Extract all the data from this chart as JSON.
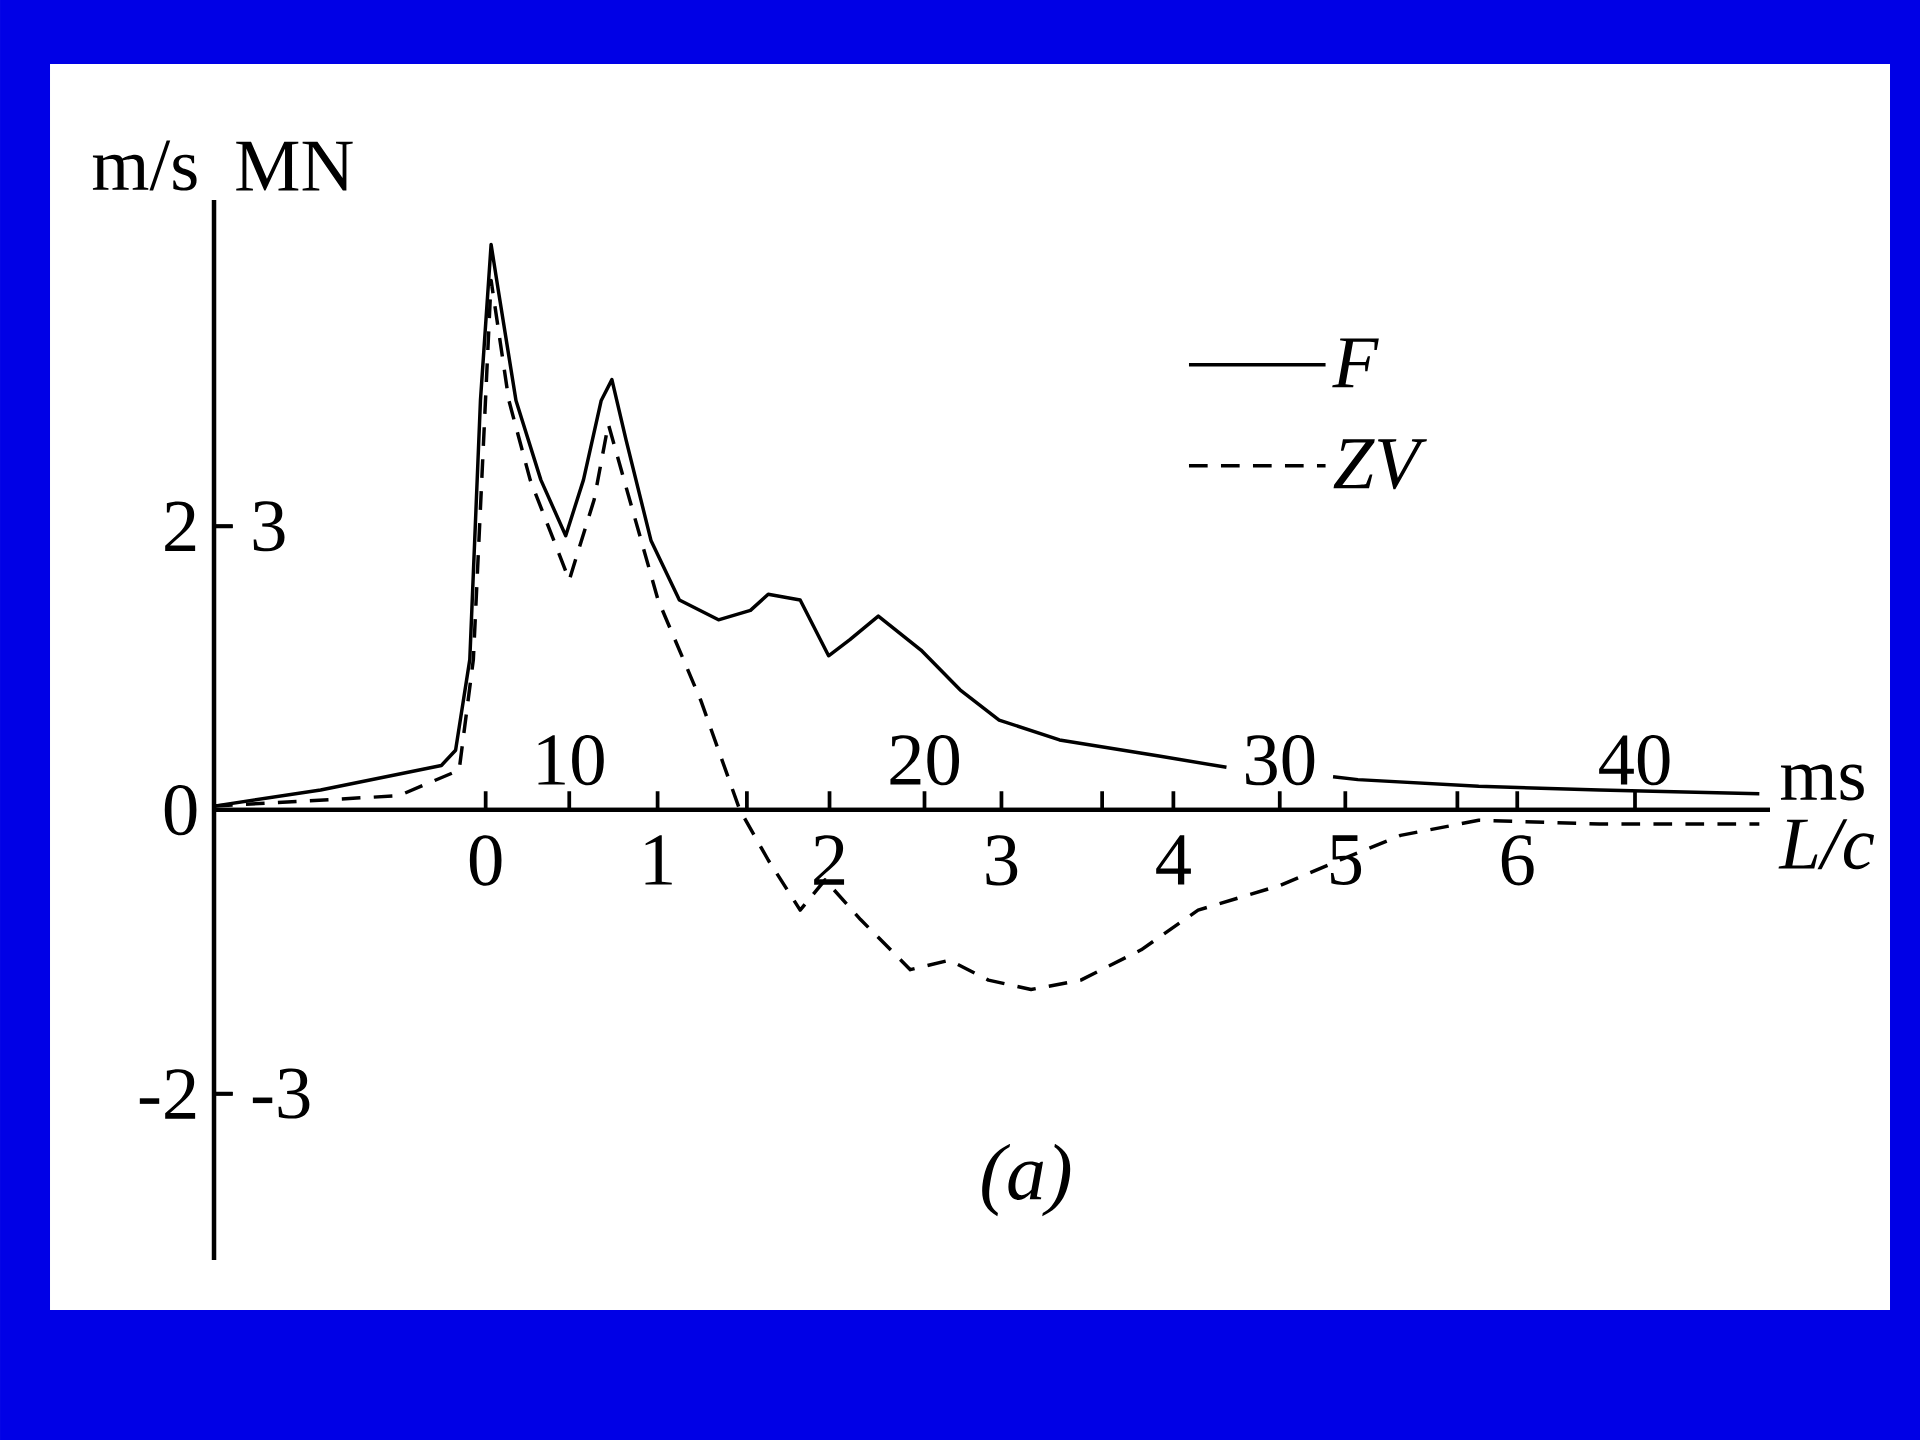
{
  "chart_data": {
    "type": "line",
    "xlabel": "ms",
    "ylabel": "MN",
    "y2label": "m/s",
    "x2label": "L/c",
    "annotations": [
      "(a)"
    ],
    "xlim": [
      0,
      43.8
    ],
    "xticks": [
      10,
      {
        "value": 15,
        "label": null
      },
      20,
      {
        "value": 25,
        "label": null
      },
      30,
      {
        "value": 35,
        "label": null
      },
      40
    ],
    "ylim": [
      -4.76,
      6.45
    ],
    "yticks": [
      3,
      -3
    ],
    "y2lim": [
      -3.17,
      4.3
    ],
    "y2ticks": [
      2,
      0,
      -2
    ],
    "x2lim": [
      -1.58,
      7.47
    ],
    "x2ticks": [
      0,
      1,
      2,
      3,
      4,
      5,
      6
    ],
    "legend": "top right",
    "grid": false,
    "series": [
      {
        "name": "F",
        "color": "#000000",
        "line_style": "solid",
        "x": [
          0,
          3.0,
          6.4,
          6.8,
          7.2,
          7.5,
          7.8,
          8.0,
          8.5,
          9.2,
          9.9,
          10.4,
          10.9,
          11.2,
          11.6,
          12.3,
          13.1,
          14.2,
          15.1,
          15.6,
          16.5,
          17.3,
          17.9,
          18.7,
          19.9,
          21.0,
          22.1,
          23.8,
          26.6,
          28.5,
          30.0,
          31.5,
          32.2,
          35.6,
          39.0,
          43.5
        ],
        "values": [
          0.04,
          0.21,
          0.47,
          0.63,
          1.59,
          4.33,
          5.98,
          5.5,
          4.33,
          3.49,
          2.9,
          3.49,
          4.33,
          4.55,
          3.91,
          2.85,
          2.22,
          2.01,
          2.11,
          2.28,
          2.22,
          1.63,
          1.8,
          2.05,
          1.69,
          1.27,
          0.95,
          0.74,
          0.57,
          0.45,
          null,
          0.35,
          0.32,
          0.25,
          0.21,
          0.17
        ]
      },
      {
        "name": "ZV",
        "color": "#000000",
        "line_style": "dashed",
        "x": [
          0,
          5.2,
          6.9,
          7.3,
          7.8,
          8.3,
          8.9,
          10.0,
          10.7,
          11.1,
          11.7,
          12.5,
          13.7,
          14.8,
          15.6,
          16.5,
          17.2,
          18.2,
          19.6,
          20.7,
          21.8,
          23.0,
          24.4,
          26.1,
          27.7,
          30.0,
          31.7,
          33.4,
          35.6,
          39.0,
          43.5
        ],
        "values": [
          0.04,
          0.15,
          0.42,
          1.59,
          5.6,
          4.33,
          3.49,
          2.43,
          3.28,
          4.08,
          3.28,
          2.22,
          1.16,
          0,
          -0.53,
          -1.06,
          -0.74,
          -1.16,
          -1.69,
          -1.59,
          -1.8,
          -1.9,
          -1.8,
          -1.48,
          -1.06,
          -0.8,
          -0.53,
          -0.27,
          -0.11,
          -0.15,
          -0.15
        ]
      }
    ]
  }
}
